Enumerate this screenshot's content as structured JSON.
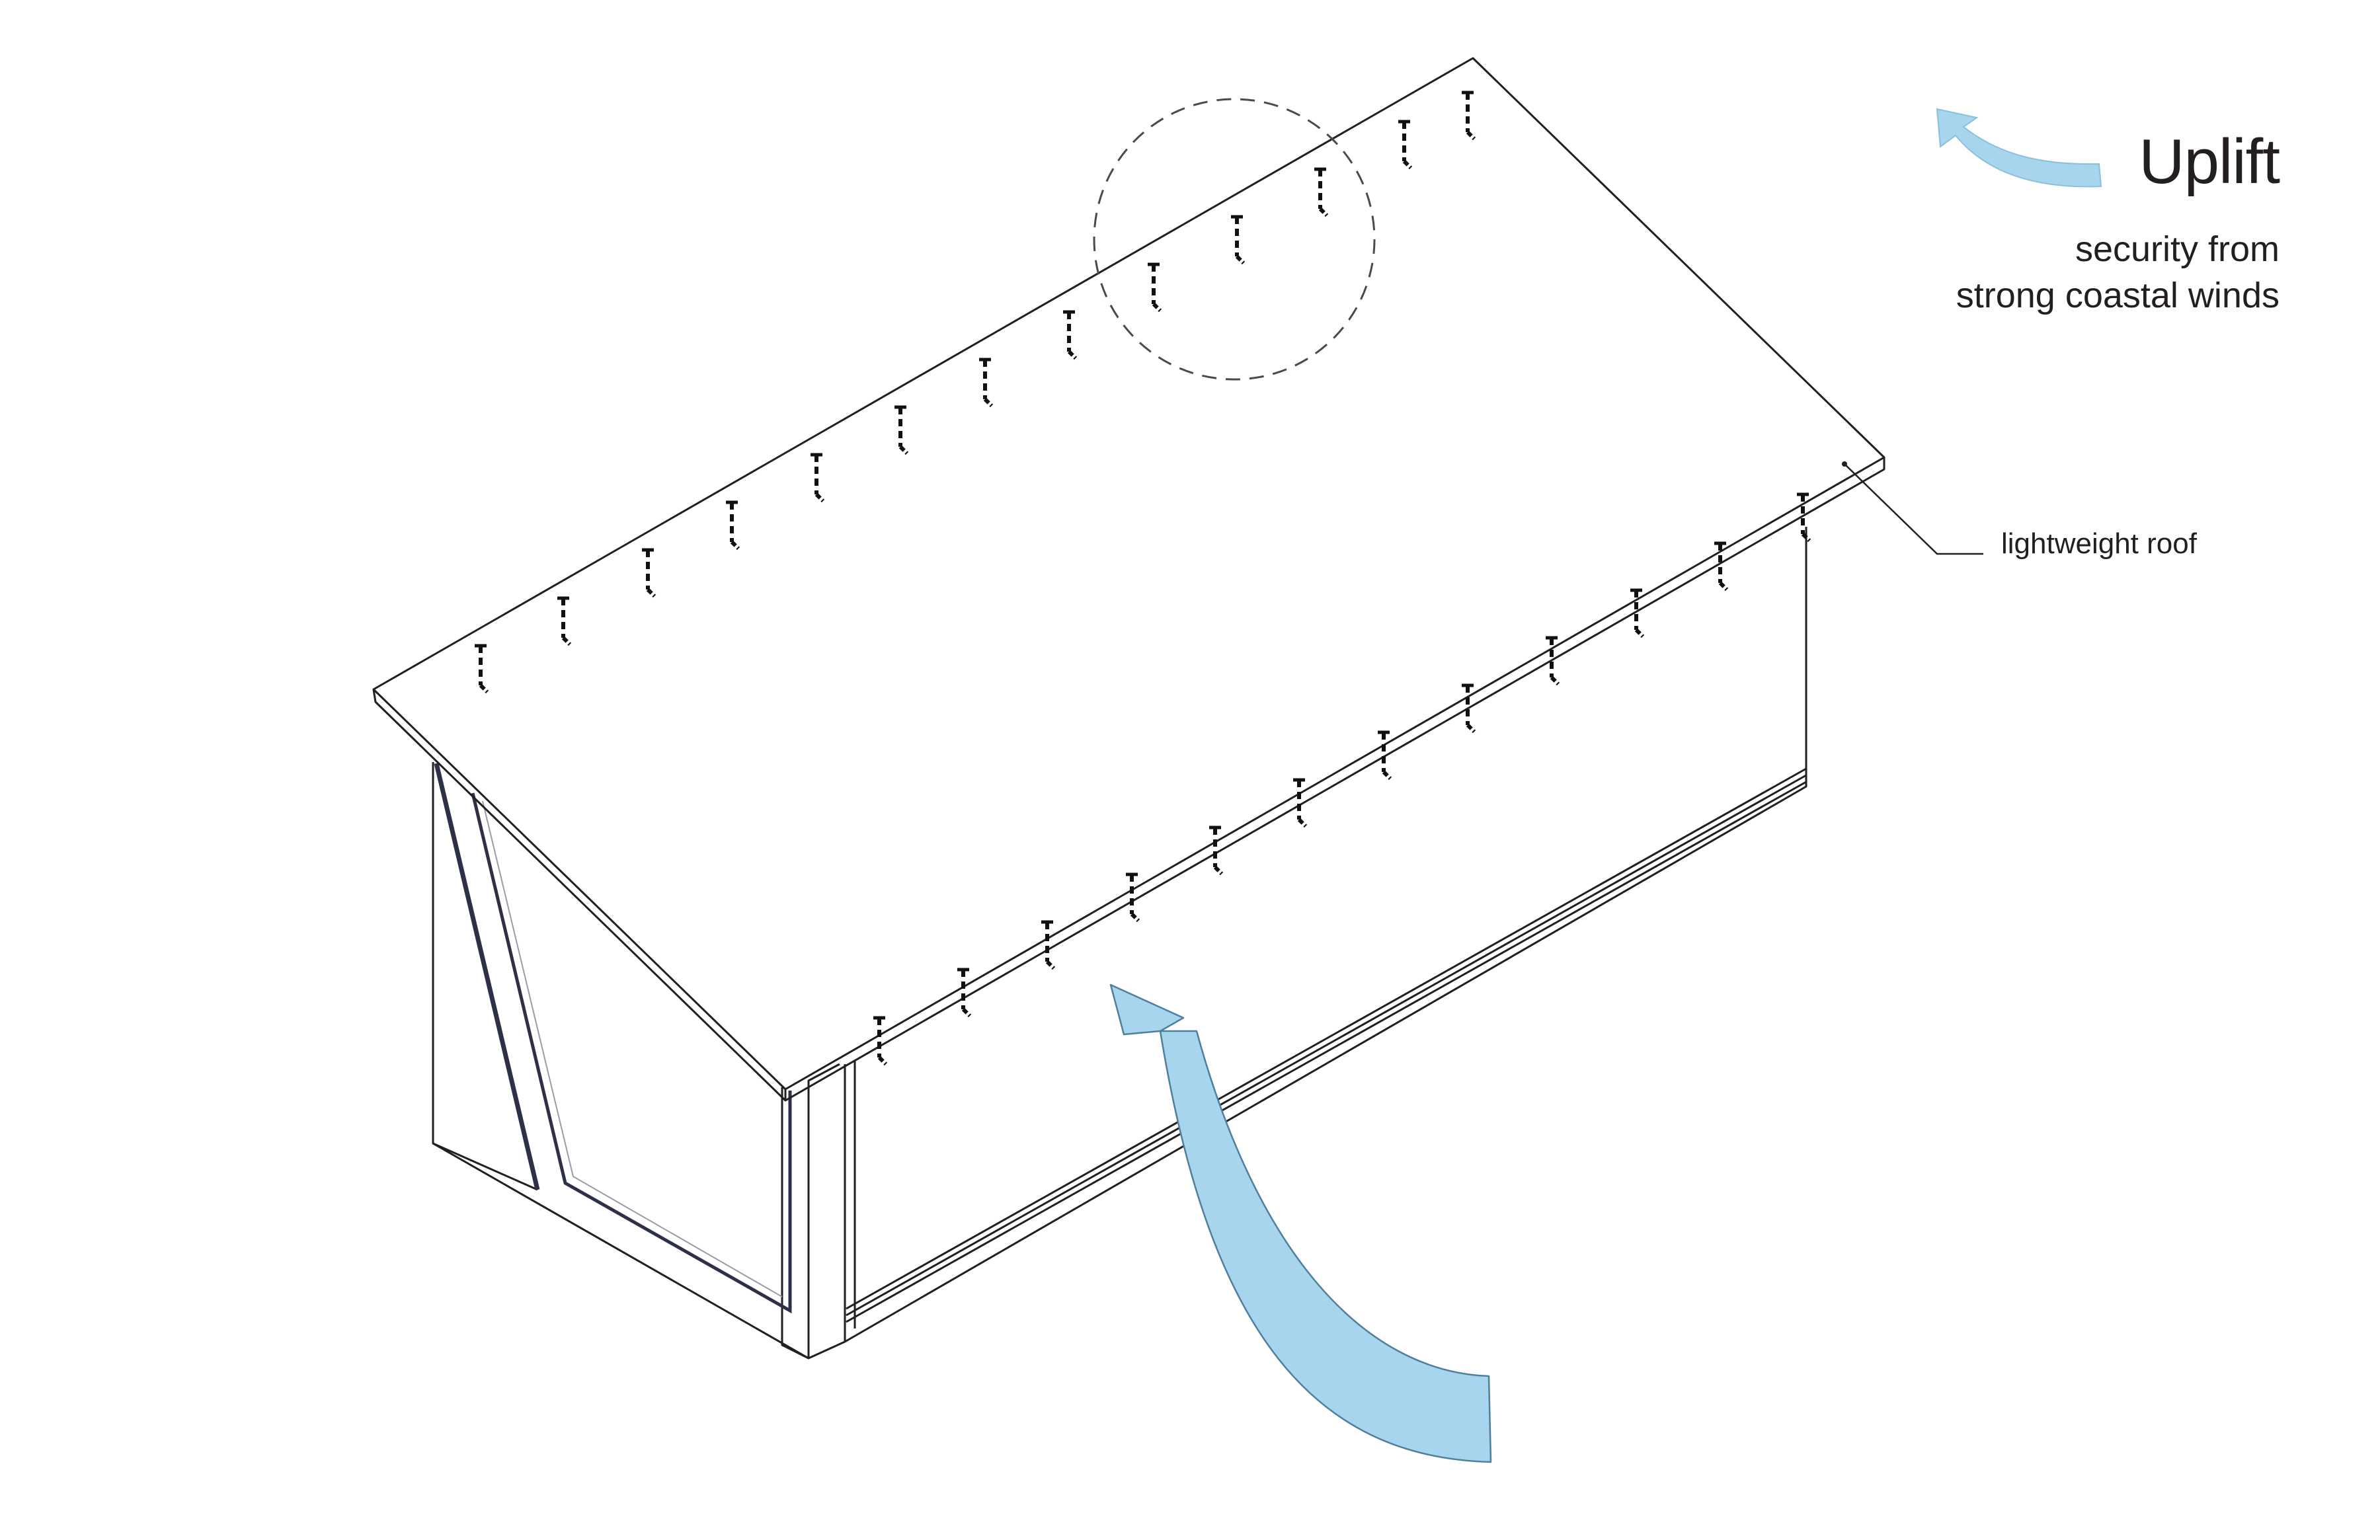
{
  "title": "Uplift",
  "subtitle": {
    "line1": "security from",
    "line2": "strong coastal winds"
  },
  "callout": {
    "label": "lightweight roof"
  },
  "colors": {
    "line": "#231f20",
    "wall_edge": "#2e3047",
    "arrow_fill": "#a8d5ee",
    "arrow_stroke": "#4f7f9c",
    "dashed_circle": "#4a4a4a"
  },
  "icons": {
    "uplift_arrow": "curved-arrow-up-icon",
    "legend_arrow": "curved-arrow-left-icon",
    "connector": "hurricane-tie-icon"
  }
}
